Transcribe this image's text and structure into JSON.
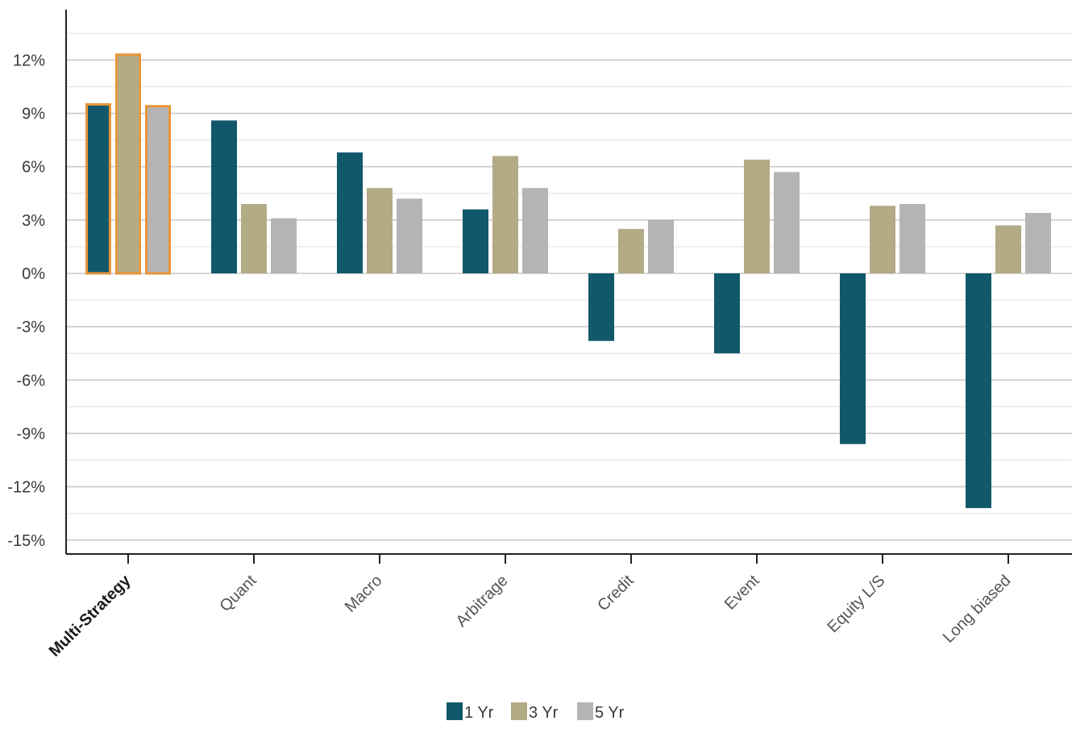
{
  "chart_data": {
    "type": "bar",
    "title": "",
    "xlabel": "",
    "ylabel": "",
    "ylim": [
      -15,
      15
    ],
    "yticks": [
      12,
      9,
      6,
      3,
      0,
      -3,
      -6,
      -9,
      -12,
      -15
    ],
    "ytick_labels": [
      "12%",
      "9%",
      "6%",
      "3%",
      "0%",
      "-3%",
      "-6%",
      "-9%",
      "-12%",
      "-15%"
    ],
    "grid": true,
    "legend_position": "bottom-center",
    "highlight_category": "Multi-Strategy",
    "highlight_color": "#E8963A",
    "categories": [
      "Multi-Strategy",
      "Quant",
      "Macro",
      "Arbitrage",
      "Credit",
      "Event",
      "Equity L/S",
      "Long biased"
    ],
    "series": [
      {
        "name": "1 Yr",
        "color": "#12586B",
        "values": [
          9.5,
          8.6,
          6.8,
          3.6,
          -3.8,
          -4.5,
          -9.6,
          -13.2
        ]
      },
      {
        "name": "3 Yr",
        "color": "#B3AA86",
        "values": [
          12.3,
          3.9,
          4.8,
          6.6,
          2.5,
          6.4,
          3.8,
          2.7
        ]
      },
      {
        "name": "5 Yr",
        "color": "#B4B4B4",
        "values": [
          9.4,
          3.1,
          4.2,
          4.8,
          3.0,
          5.7,
          3.9,
          3.4
        ]
      }
    ]
  }
}
